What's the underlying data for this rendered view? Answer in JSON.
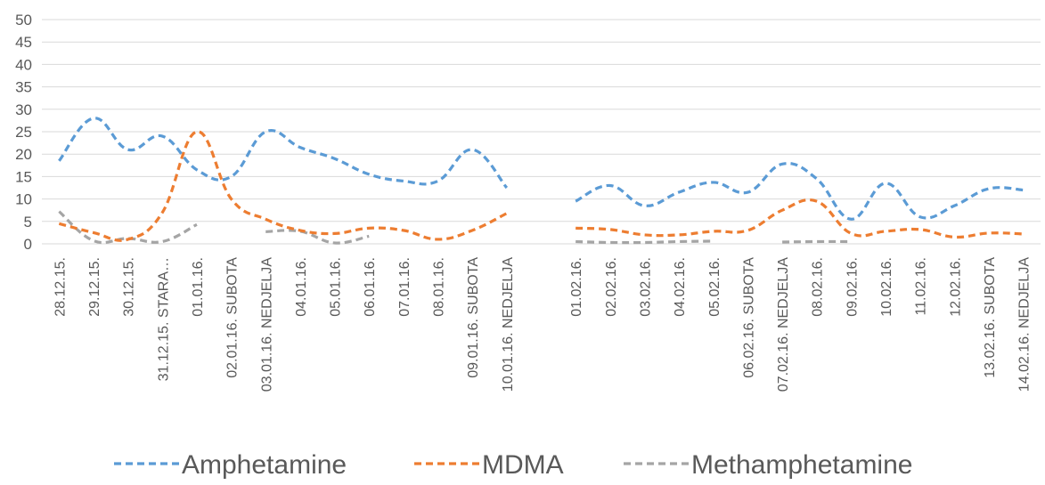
{
  "chart_data": {
    "type": "line",
    "title": "",
    "xlabel": "",
    "ylabel": "",
    "ylim": [
      0,
      50
    ],
    "y_ticks": [
      0,
      5,
      10,
      15,
      20,
      25,
      30,
      35,
      40,
      45,
      50
    ],
    "grid": true,
    "legend_position": "bottom",
    "smooth": true,
    "categories": [
      "28.12.15.",
      "29.12.15.",
      "30.12.15.",
      "31.12.15. STARA…",
      "01.01.16.",
      "02.01.16. SUBOTA",
      "03.01.16. NEDJELJA",
      "04.01.16.",
      "05.01.16.",
      "06.01.16.",
      "07.01.16.",
      "08.01.16.",
      "09.01.16. SUBOTA",
      "10.01.16. NEDJELJA",
      "",
      "01.02.16.",
      "02.02.16.",
      "03.02.16.",
      "04.02.16.",
      "05.02.16.",
      "06.02.16. SUBOTA",
      "07.02.16. NEDJELJA",
      "08.02.16.",
      "09.02.16.",
      "10.02.16.",
      "11.02.16.",
      "12.02.16.",
      "13.02.16. SUBOTA",
      "14.02.16. NEDJELJA"
    ],
    "series": [
      {
        "name": "Amphetamine",
        "color": "#5b9bd5",
        "values": [
          18.5,
          28,
          21,
          24,
          16.5,
          15,
          25,
          21.5,
          19,
          15.5,
          14,
          14,
          21,
          12.5,
          null,
          9.5,
          13,
          8.5,
          11.5,
          13.7,
          11.5,
          17.8,
          14.5,
          5.5,
          13.5,
          6,
          8.5,
          12.3,
          12
        ]
      },
      {
        "name": "MDMA",
        "color": "#ed7d31",
        "values": [
          4.5,
          2.5,
          1,
          7,
          25,
          10,
          5.5,
          3,
          2.3,
          3.5,
          3,
          1,
          3,
          6.8,
          null,
          3.5,
          3.2,
          2,
          2,
          2.8,
          3,
          7.5,
          9.5,
          2.3,
          2.8,
          3.2,
          1.5,
          2.4,
          2.2
        ]
      },
      {
        "name": "Methamphetamine",
        "color": "#a5a5a5",
        "values": [
          7.2,
          0.7,
          1.2,
          0.5,
          4.3,
          null,
          2.7,
          2.8,
          0.2,
          1.7,
          null,
          null,
          null,
          null,
          null,
          0.5,
          0.3,
          0.3,
          0.5,
          0.6,
          null,
          0.4,
          0.5,
          0.5,
          null,
          null,
          null,
          null,
          null
        ]
      }
    ]
  }
}
